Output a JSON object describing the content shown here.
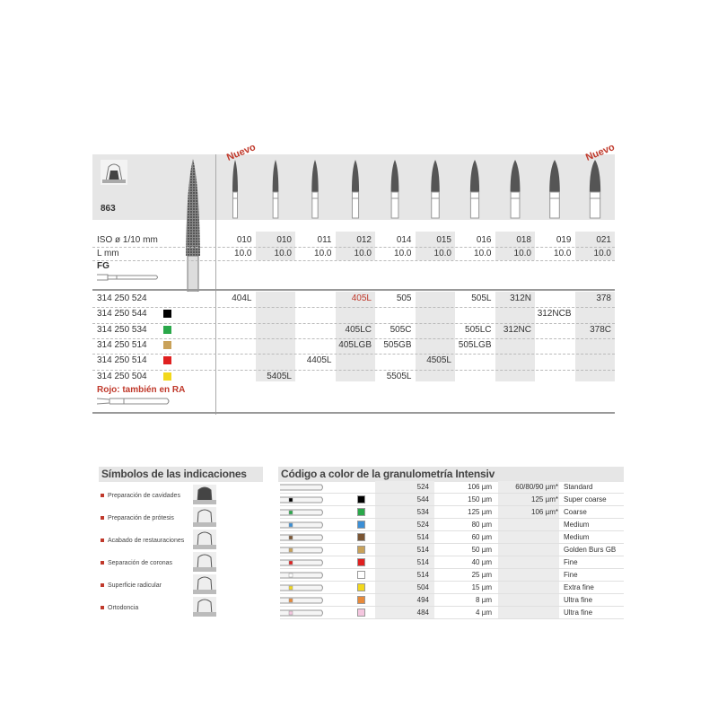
{
  "header": {
    "model": "863",
    "nuevo": "Nuevo",
    "nuevo2": "Nuevo"
  },
  "specs": {
    "iso_label": "ISO ø 1/10 mm",
    "l_label": "L mm",
    "fg_label": "FG",
    "iso": [
      "010",
      "010",
      "011",
      "012",
      "014",
      "015",
      "016",
      "018",
      "019",
      "021"
    ],
    "l": [
      "10.0",
      "10.0",
      "10.0",
      "10.0",
      "10.0",
      "10.0",
      "10.0",
      "10.0",
      "10.0",
      "10.0"
    ]
  },
  "rows": [
    {
      "code": "314 250 524",
      "color": "",
      "cells": [
        "404L",
        "",
        "",
        "405L",
        "505",
        "",
        "505L",
        "312N",
        "",
        "378"
      ]
    },
    {
      "code": "314 250 544",
      "color": "#000000",
      "cells": [
        "",
        "",
        "",
        "",
        "",
        "",
        "",
        "",
        "312NCB",
        ""
      ]
    },
    {
      "code": "314 250 534",
      "color": "#2aa84a",
      "cells": [
        "",
        "",
        "",
        "405LC",
        "505C",
        "",
        "505LC",
        "312NC",
        "",
        "378C"
      ]
    },
    {
      "code": "314 250 514",
      "color": "#c9a25a",
      "cells": [
        "",
        "",
        "",
        "405LGB",
        "505GB",
        "",
        "505LGB",
        "",
        "",
        ""
      ]
    },
    {
      "code": "314 250 514",
      "color": "#e02020",
      "cells": [
        "",
        "",
        "4405L",
        "",
        "",
        "4505L",
        "",
        "",
        "",
        ""
      ]
    },
    {
      "code": "314 250 504",
      "color": "#f2d81c",
      "cells": [
        "",
        "5405L",
        "",
        "",
        "5505L",
        "",
        "",
        "",
        "",
        ""
      ]
    }
  ],
  "highlight_color": "#c0392b",
  "ra_note": "Rojo: también en RA",
  "indications": {
    "title": "Símbolos de las indicaciones",
    "items": [
      {
        "label": "Preparación de cavidades",
        "icon": "cavity-icon"
      },
      {
        "label": "Preparación de prótesis",
        "icon": "prosthesis-icon"
      },
      {
        "label": "Acabado de restauraciones",
        "icon": "restoration-icon"
      },
      {
        "label": "Separación de coronas",
        "icon": "crown-separation-icon"
      },
      {
        "label": "Superficie radicular",
        "icon": "root-surface-icon"
      },
      {
        "label": "Ortodoncia",
        "icon": "orthodontics-icon"
      }
    ]
  },
  "grit": {
    "title": "Código a color de la granulometría Intensiv",
    "rows": [
      {
        "color": "",
        "code": "524",
        "size": "106 µm",
        "alt": "60/80/90 µm*",
        "label": "Standard"
      },
      {
        "color": "#000000",
        "code": "544",
        "size": "150 µm",
        "alt": "125 µm*",
        "label": "Super coarse"
      },
      {
        "color": "#2aa84a",
        "code": "534",
        "size": "125 µm",
        "alt": "106 µm*",
        "label": "Coarse"
      },
      {
        "color": "#3b8fd6",
        "code": "524",
        "size": "80 µm",
        "alt": "",
        "label": "Medium"
      },
      {
        "color": "#7a5533",
        "code": "514",
        "size": "60 µm",
        "alt": "",
        "label": "Medium"
      },
      {
        "color": "#c9a25a",
        "code": "514",
        "size": "50 µm",
        "alt": "",
        "label": "Golden Burs GB"
      },
      {
        "color": "#e02020",
        "code": "514",
        "size": "40 µm",
        "alt": "",
        "label": "Fine"
      },
      {
        "color": "#ffffff",
        "code": "514",
        "size": "25 µm",
        "alt": "",
        "label": "Fine"
      },
      {
        "color": "#f2d81c",
        "code": "504",
        "size": "15 µm",
        "alt": "",
        "label": "Extra fine"
      },
      {
        "color": "#e88a3a",
        "code": "494",
        "size": "8 µm",
        "alt": "",
        "label": "Ultra fine"
      },
      {
        "color": "#f4c6df",
        "code": "484",
        "size": "4 µm",
        "alt": "",
        "label": "Ultra fine"
      }
    ]
  }
}
